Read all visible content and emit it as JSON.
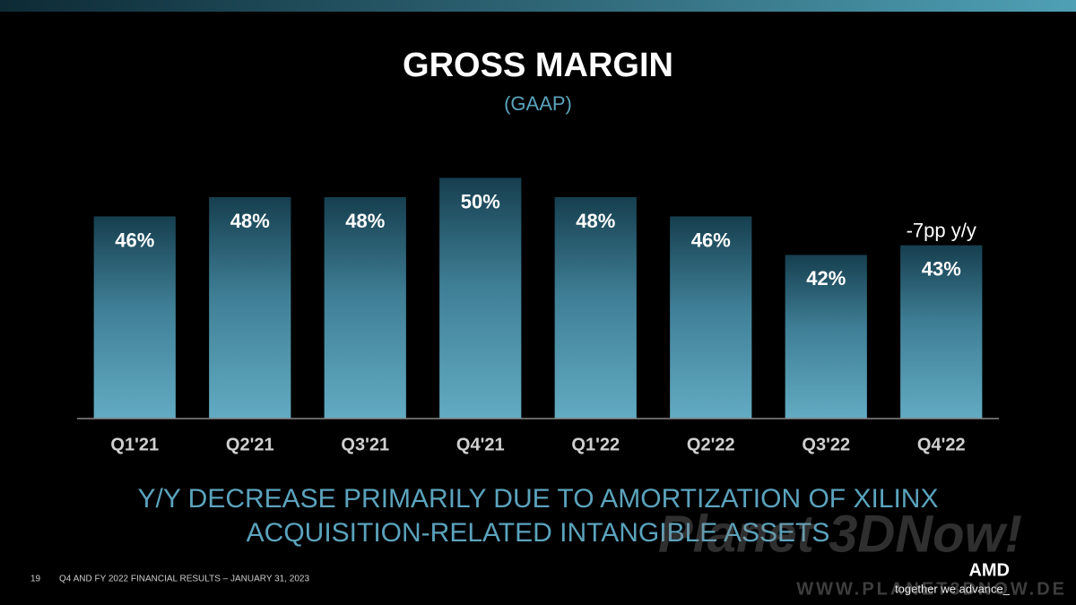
{
  "chart_data": {
    "type": "bar",
    "title": "GROSS MARGIN",
    "subtitle": "(GAAP)",
    "categories": [
      "Q1'21",
      "Q2'21",
      "Q3'21",
      "Q4'21",
      "Q1'22",
      "Q2'22",
      "Q3'22",
      "Q4'22"
    ],
    "values": [
      46,
      48,
      48,
      50,
      48,
      46,
      42,
      43
    ],
    "value_labels": [
      "46%",
      "48%",
      "48%",
      "50%",
      "48%",
      "46%",
      "42%",
      "43%"
    ],
    "ylim": [
      25,
      52
    ],
    "annotation": "-7pp y/y",
    "caption": [
      "Y/Y DECREASE PRIMARILY DUE TO AMORTIZATION OF XILINX",
      "ACQUISITION-RELATED INTANGIBLE ASSETS"
    ]
  },
  "footer": {
    "page": "19",
    "text": "Q4 AND FY 2022 FINANCIAL RESULTS – JANUARY 31, 2023",
    "logo": "AMD",
    "tagline": "together we advance_"
  },
  "watermark": {
    "brand": "Planet 3DNow!",
    "url": "WWW.PLANET3DNOW.DE"
  }
}
